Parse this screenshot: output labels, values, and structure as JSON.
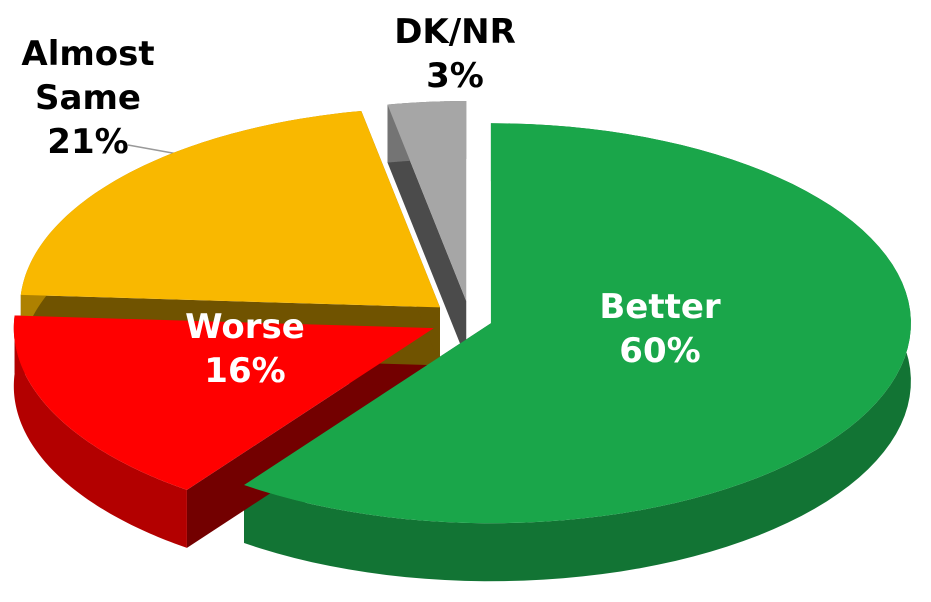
{
  "chart_data": {
    "type": "pie",
    "categories": [
      "Better",
      "Worse",
      "Almost Same",
      "DK/NR"
    ],
    "values": [
      60,
      16,
      21,
      3
    ],
    "value_labels": [
      "60%",
      "16%",
      "21%",
      "3%"
    ],
    "colors": [
      "#1aa64a",
      "#ff0000",
      "#f9b800",
      "#a6a6a6"
    ]
  }
}
